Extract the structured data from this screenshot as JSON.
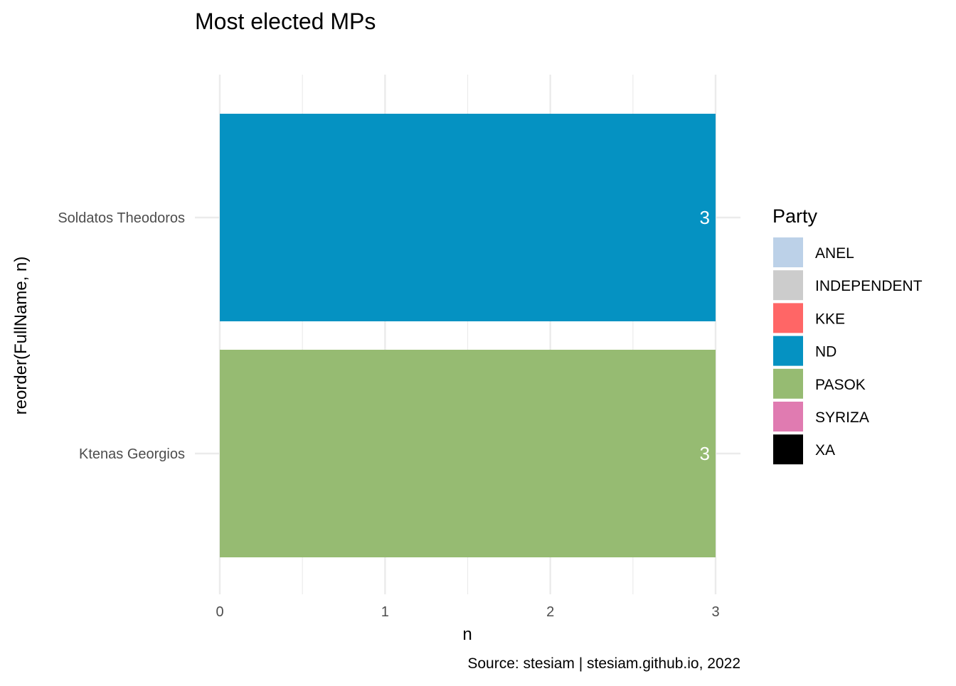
{
  "chart_data": {
    "type": "bar",
    "orientation": "horizontal",
    "title": "Most elected MPs",
    "xlabel": "n",
    "ylabel": "reorder(FullName, n)",
    "caption": "Source: stesiam | stesiam.github.io, 2022",
    "xlim": [
      0,
      3
    ],
    "x_ticks": [
      "0",
      "1",
      "2",
      "3"
    ],
    "grid": true,
    "bars": [
      {
        "category": "Soldatos Theodoros",
        "value": 3,
        "label": "3",
        "party": "ND"
      },
      {
        "category": "Ktenas Georgios",
        "value": 3,
        "label": "3",
        "party": "PASOK"
      }
    ],
    "legend": {
      "title": "Party",
      "placement": "right",
      "items": [
        {
          "label": "ANEL",
          "color": "#bcd1e8"
        },
        {
          "label": "INDEPENDENT",
          "color": "#cccccc"
        },
        {
          "label": "KKE",
          "color": "#ff6666"
        },
        {
          "label": "ND",
          "color": "#0592c2"
        },
        {
          "label": "PASOK",
          "color": "#96bb72"
        },
        {
          "label": "SYRIZA",
          "color": "#e07bb1"
        },
        {
          "label": "XA",
          "color": "#000000"
        }
      ]
    }
  }
}
